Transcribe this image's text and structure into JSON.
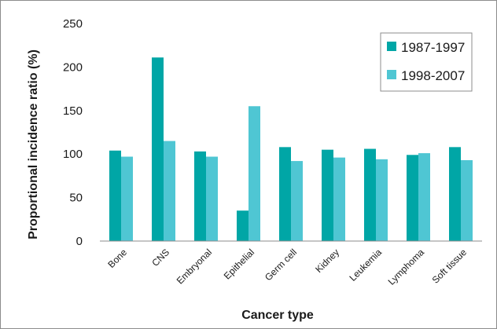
{
  "chart_data": {
    "type": "bar",
    "title": "",
    "xlabel": "Cancer type",
    "ylabel": "Proportional incidence ratio (%)",
    "ylim": [
      0,
      250
    ],
    "yticks": [
      0,
      50,
      100,
      150,
      200,
      250
    ],
    "grid": false,
    "legend_position": "top-right",
    "categories": [
      "Bone",
      "CNS",
      "Embryonal",
      "Epithelial",
      "Germ cell",
      "Kidney",
      "Leukemia",
      "Lymphoma",
      "Soft tissue"
    ],
    "series": [
      {
        "name": "1987-1997",
        "color": "#00a6a6",
        "values": [
          104,
          211,
          103,
          35,
          108,
          105,
          106,
          99,
          108
        ]
      },
      {
        "name": "1998-2007",
        "color": "#4fc6d3",
        "values": [
          97,
          115,
          97,
          155,
          92,
          96,
          94,
          101,
          93
        ]
      }
    ]
  }
}
